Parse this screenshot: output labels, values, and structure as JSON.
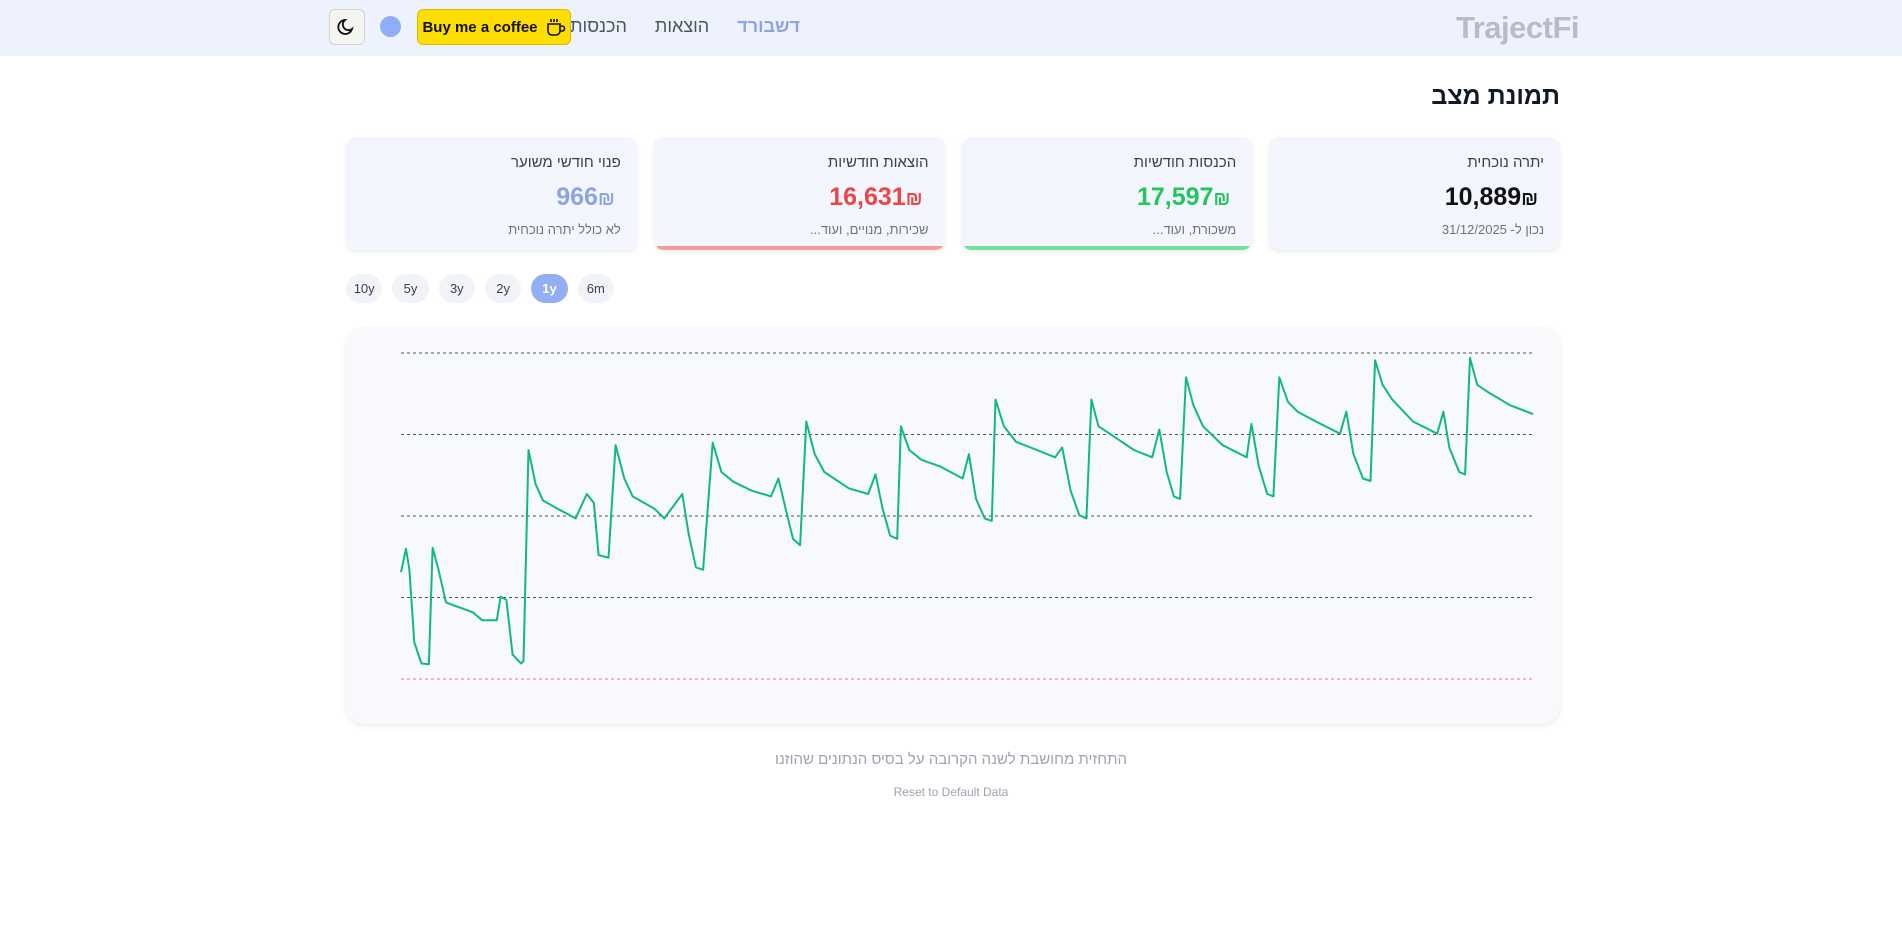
{
  "nav": {
    "logo": "TrajectFi",
    "links": [
      "דשבורד",
      "הוצאות",
      "הכנסות"
    ],
    "coffee": "Buy me a coffee"
  },
  "page_title": "תמונת מצב",
  "cards": [
    {
      "label": "יתרה נוכחית",
      "value": "10,889",
      "currency": "₪",
      "note": "נכון ל- 31/12/2025"
    },
    {
      "label": "הכנסות חודשיות",
      "value": "17,597",
      "currency": "₪",
      "note": "משכורת, ועוד..."
    },
    {
      "label": "הוצאות חודשיות",
      "value": "16,631",
      "currency": "₪",
      "note": "שכירות, מנויים, ועוד..."
    },
    {
      "label": "פנוי חודשי משוער",
      "value": "966",
      "currency": "₪",
      "note": "לא כולל יתרה נוכחית"
    }
  ],
  "ranges": [
    "6m",
    "1y",
    "2y",
    "3y",
    "5y",
    "10y"
  ],
  "active_range": "1y",
  "chart_data": {
    "type": "line",
    "color": "#10b981",
    "baseline_color": "#f87171",
    "grid": true,
    "xlim": [
      0,
      365
    ],
    "ylim": [
      0,
      4
    ],
    "yticks": [
      0,
      1,
      2,
      3,
      4
    ],
    "x": [
      0,
      1.6,
      2.7,
      4.3,
      6.6,
      9.0,
      10.2,
      12.1,
      14.5,
      17.2,
      23.1,
      26.2,
      30.9,
      32.1,
      34.0,
      36.0,
      38.7,
      39.5,
      41.1,
      43.4,
      45.8,
      50.5,
      56.3,
      59.9,
      62.2,
      63.7,
      66.9,
      69.2,
      72.0,
      74.7,
      81.7,
      84.9,
      90.7,
      92.7,
      95.1,
      97.4,
      100.5,
      103.3,
      107.2,
      113.1,
      119.3,
      121.7,
      124.0,
      126.4,
      128.7,
      130.7,
      133.4,
      136.5,
      144.4,
      150.6,
      153.0,
      155.3,
      157.7,
      160.0,
      161.2,
      163.9,
      167.8,
      173.7,
      181.1,
      183.1,
      185.4,
      188.2,
      190.5,
      191.7,
      194.4,
      198.3,
      203.0,
      210.9,
      213.2,
      215.9,
      218.7,
      221.0,
      222.6,
      224.9,
      228.5,
      236.3,
      242.2,
      244.5,
      246.9,
      249.2,
      251.2,
      253.1,
      255.5,
      258.6,
      264.9,
      272.7,
      274.2,
      276.6,
      279.3,
      281.3,
      283.2,
      286.0,
      289.1,
      295.0,
      302.8,
      304.8,
      307.1,
      310.2,
      312.6,
      314.1,
      316.5,
      319.6,
      326.3,
      334.1,
      336.1,
      338.0,
      341.2,
      343.1,
      344.7,
      347.0,
      350.9,
      357.6,
      365
    ],
    "values": [
      1.31,
      1.6,
      1.34,
      0.45,
      0.19,
      0.18,
      1.61,
      1.34,
      0.94,
      0.9,
      0.82,
      0.72,
      0.72,
      1.01,
      0.97,
      0.3,
      0.19,
      0.22,
      2.81,
      2.39,
      2.19,
      2.09,
      1.97,
      2.27,
      2.16,
      1.52,
      1.49,
      2.87,
      2.46,
      2.24,
      2.09,
      1.97,
      2.27,
      1.79,
      1.37,
      1.34,
      2.9,
      2.54,
      2.42,
      2.31,
      2.24,
      2.46,
      2.09,
      1.72,
      1.64,
      3.16,
      2.76,
      2.54,
      2.34,
      2.27,
      2.51,
      2.09,
      1.76,
      1.72,
      3.1,
      2.81,
      2.69,
      2.61,
      2.46,
      2.76,
      2.21,
      1.97,
      1.94,
      3.43,
      3.1,
      2.91,
      2.84,
      2.72,
      2.84,
      2.31,
      2.01,
      1.97,
      3.43,
      3.1,
      3.01,
      2.81,
      2.72,
      3.06,
      2.54,
      2.24,
      2.21,
      3.7,
      3.36,
      3.1,
      2.87,
      2.72,
      3.13,
      2.61,
      2.27,
      2.24,
      3.7,
      3.4,
      3.28,
      3.16,
      3.01,
      3.28,
      2.76,
      2.46,
      2.43,
      3.91,
      3.61,
      3.43,
      3.16,
      3.01,
      3.28,
      2.84,
      2.54,
      2.51,
      3.94,
      3.61,
      3.51,
      3.36,
      3.25
    ]
  },
  "footer": {
    "note": "התחזית מחושבת לשנה הקרובה על בסיס הנתונים שהוזנו",
    "reset": "Reset to Default Data"
  }
}
